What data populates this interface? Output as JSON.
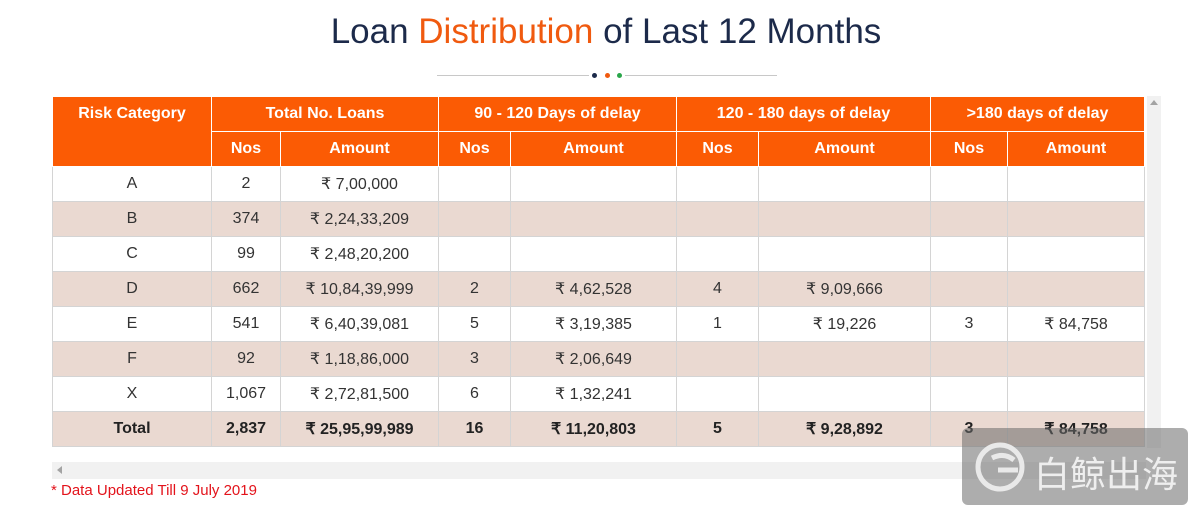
{
  "title": {
    "part1": "Loan ",
    "accent": "Distribution",
    "part2": " of Last 12 Months"
  },
  "colors": {
    "accent": "#f05a0f",
    "header_bg": "#fb5b04",
    "row_alt": "#ead9d1",
    "title": "#1c2a4a",
    "note": "#e3131b"
  },
  "separator_dots": [
    "#1c2a4a",
    "#f05a0f",
    "#2aa64a"
  ],
  "table": {
    "group_headers": [
      "Risk Category",
      "Total No. Loans",
      "90 - 120 Days of delay",
      "120 - 180 days of delay",
      ">180 days of delay"
    ],
    "sub_headers": [
      "Nos",
      "Amount",
      "Nos",
      "Amount",
      "Nos",
      "Amount",
      "Nos",
      "Amount"
    ],
    "rows": [
      [
        "A",
        "2",
        "₹ 7,00,000",
        "",
        "",
        "",
        "",
        "",
        ""
      ],
      [
        "B",
        "374",
        "₹ 2,24,33,209",
        "",
        "",
        "",
        "",
        "",
        ""
      ],
      [
        "C",
        "99",
        "₹ 2,48,20,200",
        "",
        "",
        "",
        "",
        "",
        ""
      ],
      [
        "D",
        "662",
        "₹ 10,84,39,999",
        "2",
        "₹ 4,62,528",
        "4",
        "₹ 9,09,666",
        "",
        ""
      ],
      [
        "E",
        "541",
        "₹ 6,40,39,081",
        "5",
        "₹ 3,19,385",
        "1",
        "₹ 19,226",
        "3",
        "₹ 84,758"
      ],
      [
        "F",
        "92",
        "₹ 1,18,86,000",
        "3",
        "₹ 2,06,649",
        "",
        "",
        "",
        ""
      ],
      [
        "X",
        "1,067",
        "₹ 2,72,81,500",
        "6",
        "₹ 1,32,241",
        "",
        "",
        "",
        ""
      ]
    ],
    "total": [
      "Total",
      "2,837",
      "₹ 25,95,99,989",
      "16",
      "₹ 11,20,803",
      "5",
      "₹ 9,28,892",
      "3",
      "₹ 84,758"
    ]
  },
  "note": "* Data Updated Till 9 July 2019",
  "watermark": {
    "icon": "swirl-logo-icon",
    "text": "白鲸出海"
  }
}
